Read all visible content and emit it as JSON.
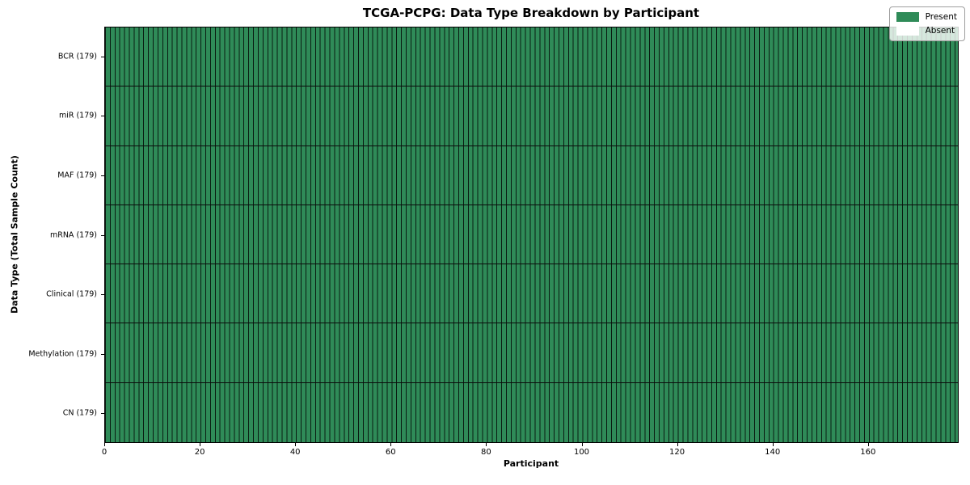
{
  "chart_data": {
    "type": "heatmap",
    "title": "TCGA-PCPG: Data Type Breakdown by Participant",
    "xlabel": "Participant",
    "ylabel": "Data Type (Total Sample Count)",
    "n_participants": 179,
    "xlim": [
      0,
      179
    ],
    "x_ticks": [
      0,
      20,
      40,
      60,
      80,
      100,
      120,
      140,
      160
    ],
    "rows": [
      {
        "label": "BCR (179)",
        "data_type": "BCR",
        "total_samples": 179,
        "present_count": 179,
        "absent_count": 0
      },
      {
        "label": "miR (179)",
        "data_type": "miR",
        "total_samples": 179,
        "present_count": 179,
        "absent_count": 0
      },
      {
        "label": "MAF (179)",
        "data_type": "MAF",
        "total_samples": 179,
        "present_count": 179,
        "absent_count": 0
      },
      {
        "label": "mRNA (179)",
        "data_type": "mRNA",
        "total_samples": 179,
        "present_count": 179,
        "absent_count": 0
      },
      {
        "label": "Clinical (179)",
        "data_type": "Clinical",
        "total_samples": 179,
        "present_count": 179,
        "absent_count": 0
      },
      {
        "label": "Methylation (179)",
        "data_type": "Methylation",
        "total_samples": 179,
        "present_count": 179,
        "absent_count": 0
      },
      {
        "label": "CN (179)",
        "data_type": "CN",
        "total_samples": 179,
        "present_count": 179,
        "absent_count": 0
      }
    ],
    "all_cells_present": true,
    "colors": {
      "present": "#2f8b58",
      "absent": "#ffffff",
      "cell_edge": "rgba(0,0,0,0.8)",
      "row_divider": "#0b0b0b"
    },
    "legend": {
      "position": "upper right",
      "entries": [
        {
          "label": "Present",
          "color": "#2f8b58"
        },
        {
          "label": "Absent",
          "color": "#ffffff"
        }
      ]
    },
    "grid": false
  }
}
